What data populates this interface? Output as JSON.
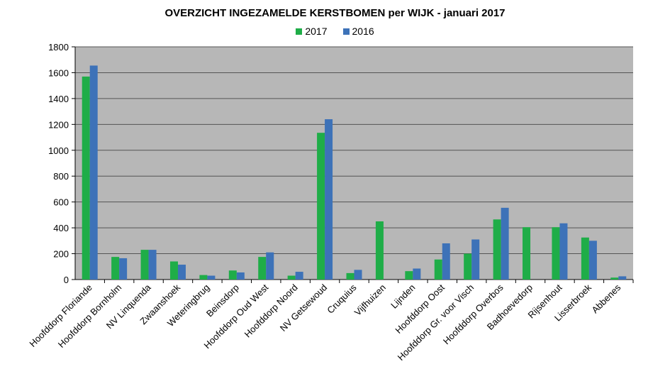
{
  "chart_data": {
    "type": "bar",
    "title": "OVERZICHT INGEZAMELDE KERSTBOMEN per WIJK - januari 2017",
    "xlabel": "",
    "ylabel": "",
    "ylim": [
      0,
      1800
    ],
    "yticks": [
      0,
      200,
      400,
      600,
      800,
      1000,
      1200,
      1400,
      1600,
      1800
    ],
    "grid": true,
    "legend_position": "top-center",
    "colors": {
      "2017": "#1fad48",
      "2016": "#3d72b8",
      "plot_bg": "#b7b7b7",
      "grid": "#555555"
    },
    "categories": [
      "Hoofddorp Floriande",
      "Hoofddorp Bornholm",
      "NV Linquenda",
      "Zwaanshoek",
      "Weteringbrug",
      "Beinsdorp",
      "Hoofddorp Oud West",
      "Hoofddorp Noord",
      "NV Getsewoud",
      "Cruquius",
      "Vijfhuizen",
      "Lijnden",
      "Hoofddorp Oost",
      "Hoofddorp Gr. voor Visch",
      "Hoofddorp Overbos",
      "Badhoevedorp",
      "Rijsenhout",
      "Lisserbroek",
      "Abbenes"
    ],
    "series": [
      {
        "name": "2017",
        "values": [
          1570,
          175,
          230,
          140,
          35,
          70,
          175,
          30,
          1135,
          50,
          450,
          65,
          155,
          200,
          465,
          405,
          405,
          325,
          15
        ]
      },
      {
        "name": "2016",
        "values": [
          1655,
          165,
          230,
          115,
          30,
          55,
          210,
          60,
          1240,
          75,
          null,
          85,
          280,
          310,
          555,
          null,
          435,
          300,
          25
        ]
      }
    ]
  }
}
